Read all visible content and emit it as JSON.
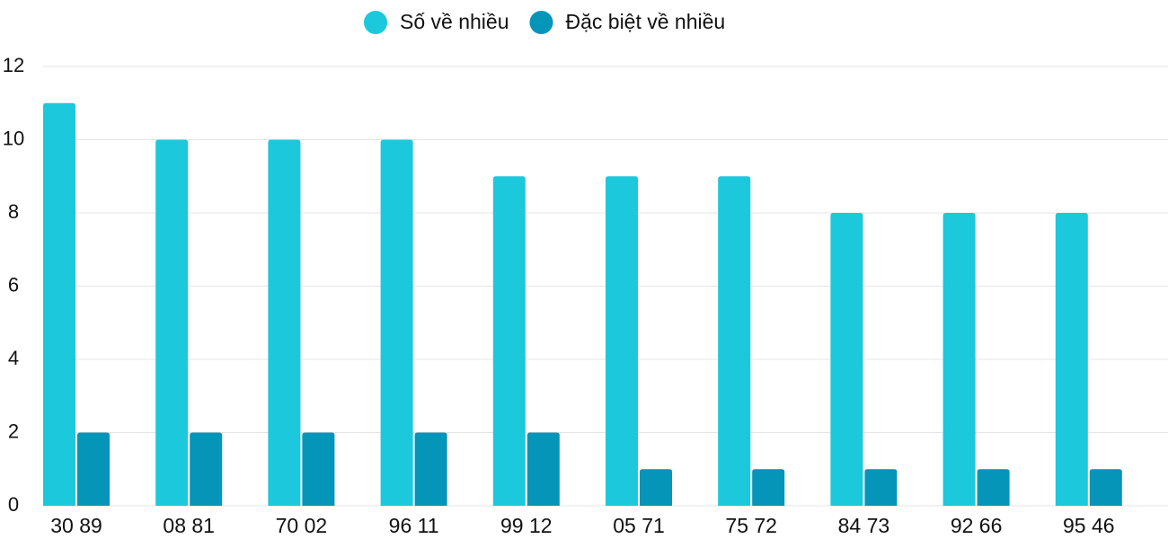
{
  "chart_data": {
    "type": "bar",
    "categories": [
      "30 89",
      "08 81",
      "70 02",
      "96 11",
      "99 12",
      "05 71",
      "75 72",
      "84 73",
      "92 66",
      "95 46"
    ],
    "series": [
      {
        "name": "Số về nhiều",
        "color": "#1bc8dc",
        "values": [
          11,
          10,
          10,
          10,
          9,
          9,
          9,
          8,
          8,
          8
        ]
      },
      {
        "name": "Đặc biệt về nhiều",
        "color": "#0595b8",
        "values": [
          2,
          2,
          2,
          2,
          2,
          1,
          1,
          1,
          1,
          1
        ]
      }
    ],
    "ylim": [
      0,
      12
    ],
    "yticks": [
      0,
      2,
      4,
      6,
      8,
      10,
      12
    ],
    "grid": true,
    "legend": "top"
  }
}
